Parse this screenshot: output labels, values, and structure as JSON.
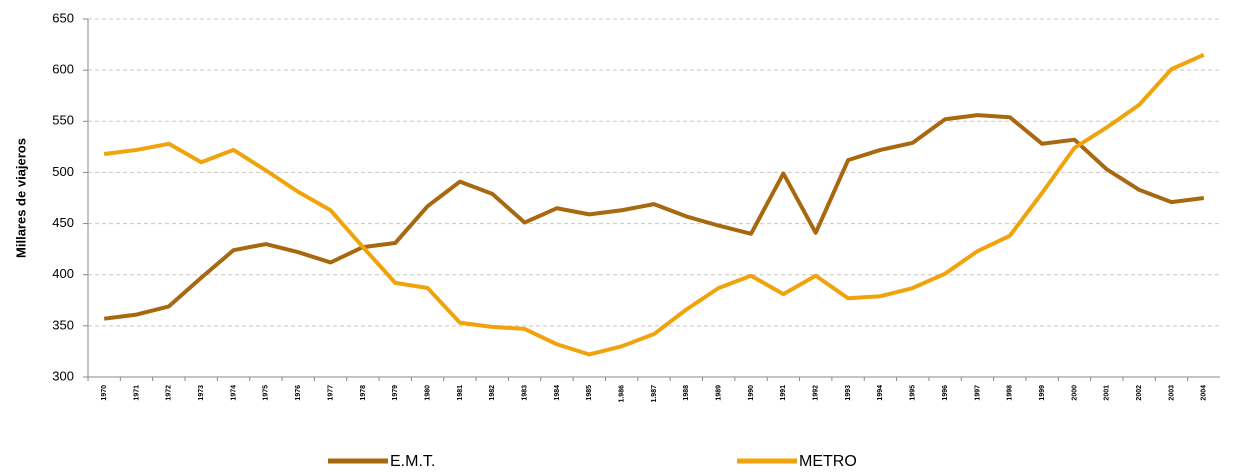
{
  "chart_data": {
    "type": "line",
    "y_label": "Millares de viajeros",
    "categories": [
      "1970",
      "1971",
      "1972",
      "1973",
      "1974",
      "1975",
      "1976",
      "1977",
      "1978",
      "1979",
      "1980",
      "1981",
      "1982",
      "1983",
      "1984",
      "1985",
      "1.986",
      "1.987",
      "1988",
      "1989",
      "1990",
      "1991",
      "1992",
      "1993",
      "1994",
      "1995",
      "1996",
      "1997",
      "1998",
      "1999",
      "2000",
      "2001",
      "2002",
      "2003",
      "2004"
    ],
    "series": [
      {
        "name": "E.M.T.",
        "color": "#a8680f",
        "values": [
          357,
          361,
          369,
          397,
          424,
          430,
          422,
          412,
          427,
          431,
          467,
          491,
          479,
          451,
          465,
          459,
          463,
          469,
          457,
          448,
          440,
          499,
          441,
          512,
          522,
          529,
          552,
          556,
          554,
          528,
          532,
          503,
          483,
          471,
          475
        ]
      },
      {
        "name": "METRO",
        "color": "#f0a30a",
        "values": [
          518,
          522,
          528,
          510,
          522,
          502,
          481,
          463,
          427,
          392,
          387,
          353,
          349,
          347,
          332,
          322,
          330,
          342,
          366,
          387,
          399,
          381,
          399,
          377,
          379,
          387,
          401,
          423,
          438,
          480,
          524,
          544,
          566,
          601,
          615
        ]
      }
    ],
    "ylim": [
      300,
      650
    ],
    "yticks": [
      300,
      350,
      400,
      450,
      500,
      550,
      600,
      650
    ],
    "grid": true
  }
}
